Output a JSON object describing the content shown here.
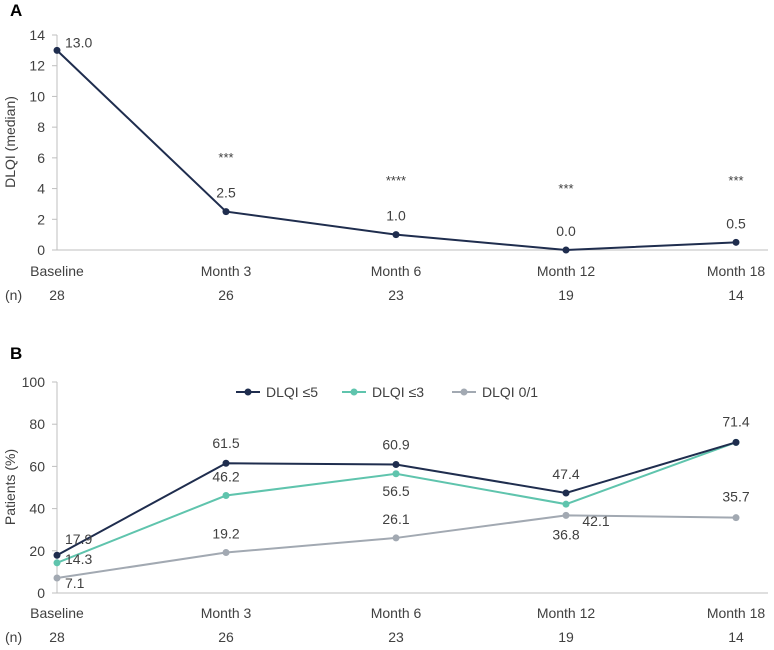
{
  "colors": {
    "navy": "#1f2d4e",
    "teal": "#5fc4ad",
    "gray": "#a2a9b2",
    "axis": "#bfbfbf",
    "text": "#404040"
  },
  "chart_data": [
    {
      "panel_label": "A",
      "type": "line",
      "ylabel": "DLQI (median)",
      "ylim": [
        0,
        14
      ],
      "yticks": [
        0,
        2,
        4,
        6,
        8,
        10,
        12,
        14
      ],
      "categories": [
        "Baseline",
        "Month 3",
        "Month 6",
        "Month 12",
        "Month 18"
      ],
      "n_label": "(n)",
      "n_values": [
        "28",
        "26",
        "23",
        "19",
        "14"
      ],
      "series": [
        {
          "values": [
            13.0,
            2.5,
            1.0,
            0.0,
            0.5
          ],
          "labels": [
            "13.0",
            "2.5",
            "1.0",
            "0.0",
            "0.5"
          ],
          "color": "navy"
        }
      ],
      "significance": [
        "",
        "***",
        "****",
        "***",
        "***"
      ],
      "grid": false
    },
    {
      "panel_label": "B",
      "type": "line",
      "ylabel": "Patients (%)",
      "ylim": [
        0,
        100
      ],
      "yticks": [
        0,
        20,
        40,
        60,
        80,
        100
      ],
      "categories": [
        "Baseline",
        "Month 3",
        "Month 6",
        "Month 12",
        "Month 18"
      ],
      "n_label": "(n)",
      "n_values": [
        "28",
        "26",
        "23",
        "19",
        "14"
      ],
      "legend_position": "top-center",
      "series": [
        {
          "name": "DLQI ≤5",
          "values": [
            17.9,
            61.5,
            60.9,
            47.4,
            71.4
          ],
          "labels": [
            "17.9",
            "61.5",
            "60.9",
            "47.4",
            "71.4"
          ],
          "color": "navy"
        },
        {
          "name": "DLQI ≤3",
          "values": [
            14.3,
            46.2,
            56.5,
            42.1,
            71.4
          ],
          "labels": [
            "14.3",
            "46.2",
            "56.5",
            "42.1",
            ""
          ],
          "color": "teal"
        },
        {
          "name": "DLQI 0/1",
          "values": [
            7.1,
            19.2,
            26.1,
            36.8,
            35.7
          ],
          "labels": [
            "7.1",
            "19.2",
            "26.1",
            "36.8",
            "35.7"
          ],
          "color": "gray"
        }
      ],
      "grid": false
    }
  ]
}
